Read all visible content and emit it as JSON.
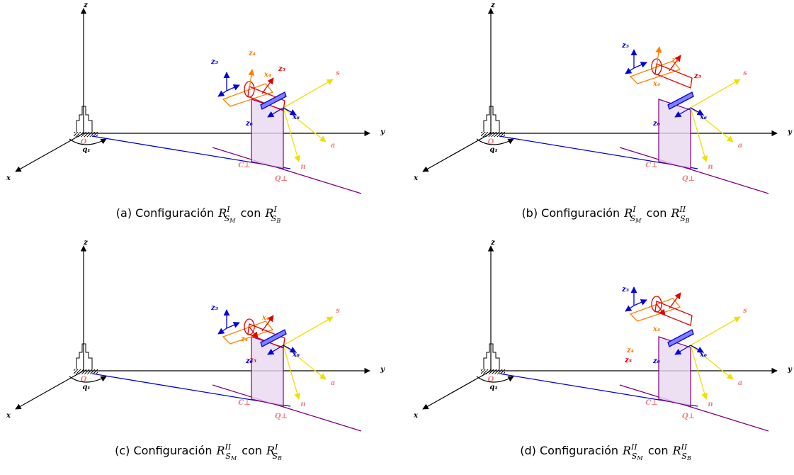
{
  "panels": [
    {
      "caption": {
        "label": "(a) Configuración",
        "r1": {
          "base": "R",
          "sup": "I",
          "sub": "S",
          "subsub": "M"
        },
        "con": "con",
        "r2": {
          "base": "R",
          "sup": "I",
          "sub": "S",
          "subsub": "B"
        }
      },
      "labels": {
        "z": "z",
        "y": "y",
        "x": "x",
        "O": "O",
        "q1": "q₁",
        "C": "C⊥",
        "Q": "Q⊥",
        "s": "s",
        "a": "a",
        "n": "n",
        "z3": "z₃",
        "z4": "z₄",
        "x4": "x₄",
        "z5": "z₅",
        "x6": "x₆",
        "z6": "z₆"
      }
    },
    {
      "caption": {
        "label": "(b) Configuración",
        "r1": {
          "base": "R",
          "sup": "I",
          "sub": "S",
          "subsub": "M"
        },
        "con": "con",
        "r2": {
          "base": "R",
          "sup": "II",
          "sub": "S",
          "subsub": "B"
        }
      },
      "labels": {
        "z": "z",
        "y": "y",
        "x": "x",
        "O": "O",
        "q1": "q₁",
        "C": "C⊥",
        "Q": "Q⊥",
        "s": "s",
        "a": "a",
        "n": "n",
        "z3": "z₃",
        "z4": "z₄",
        "x4": "x₄",
        "z5": "z₅",
        "x6": "x₆",
        "z6": "z₆"
      }
    },
    {
      "caption": {
        "label": "(c) Configuración",
        "r1": {
          "base": "R",
          "sup": "II",
          "sub": "S",
          "subsub": "M"
        },
        "con": "con",
        "r2": {
          "base": "R",
          "sup": "I",
          "sub": "S",
          "subsub": "B"
        }
      },
      "labels": {
        "z": "z",
        "y": "y",
        "x": "x",
        "O": "O",
        "q1": "q₁",
        "C": "C⊥",
        "Q": "Q⊥",
        "s": "s",
        "a": "a",
        "n": "n",
        "z3": "z₃",
        "z4": "z₄",
        "x4": "x₄",
        "z5": "z₅",
        "x6": "x₆",
        "z6": "z₆"
      }
    },
    {
      "caption": {
        "label": "(d) Configuración",
        "r1": {
          "base": "R",
          "sup": "II",
          "sub": "S",
          "subsub": "M"
        },
        "con": "con",
        "r2": {
          "base": "R",
          "sup": "II",
          "sub": "S",
          "subsub": "B"
        }
      },
      "labels": {
        "z": "z",
        "y": "y",
        "x": "x",
        "O": "O",
        "q1": "q₁",
        "C": "C⊥",
        "Q": "Q⊥",
        "s": "s",
        "a": "a",
        "n": "n",
        "z3": "z₃",
        "z4": "z₄",
        "x4": "x₄",
        "z5": "z₅",
        "x6": "x₆",
        "z6": "z₆"
      }
    }
  ]
}
